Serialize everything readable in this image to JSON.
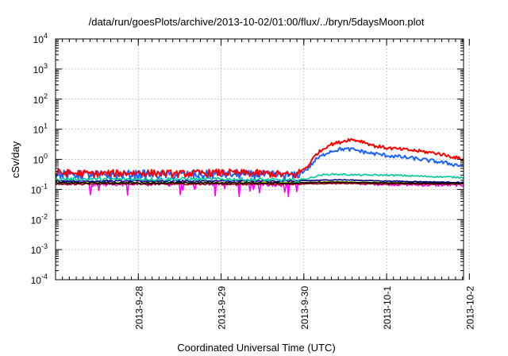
{
  "chart_data": {
    "type": "line",
    "title": "/data/run/goesPlots/archive/2013-10-02/01:00/flux/../bryn/5daysMoon.plot",
    "xlabel": "Coordinated Universal Time (UTC)",
    "ylabel": "cSv/day",
    "yscale": "log",
    "ylim": [
      0.0001,
      10000
    ],
    "xlim_days": [
      0,
      4.93
    ],
    "grid": true,
    "x_ticks": [
      {
        "label": "2013-9-28",
        "day": 1.0
      },
      {
        "label": "2013-9-29",
        "day": 2.0
      },
      {
        "label": "2013-9-30",
        "day": 3.0
      },
      {
        "label": "2013-10-1",
        "day": 4.0
      },
      {
        "label": "2013-10-2",
        "day": 5.0
      }
    ],
    "y_ticks": [
      {
        "base": "10",
        "exp": "-4",
        "value": 0.0001
      },
      {
        "base": "10",
        "exp": "-3",
        "value": 0.001
      },
      {
        "base": "10",
        "exp": "-2",
        "value": 0.01
      },
      {
        "base": "10",
        "exp": "-1",
        "value": 0.1
      },
      {
        "base": "10",
        "exp": "0",
        "value": 1
      },
      {
        "base": "10",
        "exp": "1",
        "value": 10
      },
      {
        "base": "10",
        "exp": "2",
        "value": 100
      },
      {
        "base": "10",
        "exp": "3",
        "value": 1000
      },
      {
        "base": "10",
        "exp": "4",
        "value": 10000
      }
    ],
    "series": [
      {
        "color": "#ff00ff",
        "noise": 0.11,
        "dips": true,
        "points": [
          [
            0,
            0.17
          ],
          [
            0.5,
            0.16
          ],
          [
            1,
            0.17
          ],
          [
            1.5,
            0.16
          ],
          [
            2,
            0.17
          ],
          [
            2.5,
            0.16
          ],
          [
            2.9,
            0.16
          ],
          [
            3.3,
            0.17
          ],
          [
            3.6,
            0.16
          ],
          [
            4.0,
            0.15
          ],
          [
            4.5,
            0.14
          ],
          [
            4.93,
            0.14
          ]
        ]
      },
      {
        "color": "#8b0000",
        "noise": 0.025,
        "dips": false,
        "points": [
          [
            0,
            0.15
          ],
          [
            1,
            0.15
          ],
          [
            2,
            0.15
          ],
          [
            2.9,
            0.15
          ],
          [
            3.4,
            0.16
          ],
          [
            4.0,
            0.15
          ],
          [
            4.93,
            0.15
          ]
        ]
      },
      {
        "color": "#ffff00",
        "noise": 0.02,
        "dips": false,
        "points": [
          [
            0,
            0.17
          ],
          [
            1,
            0.17
          ],
          [
            2,
            0.17
          ],
          [
            2.9,
            0.17
          ],
          [
            3.4,
            0.18
          ],
          [
            4.0,
            0.17
          ],
          [
            4.93,
            0.16
          ]
        ]
      },
      {
        "color": "#00008b",
        "noise": 0.03,
        "dips": false,
        "points": [
          [
            0,
            0.19
          ],
          [
            1,
            0.19
          ],
          [
            2,
            0.19
          ],
          [
            2.9,
            0.19
          ],
          [
            3.4,
            0.21
          ],
          [
            4.0,
            0.19
          ],
          [
            4.93,
            0.17
          ]
        ]
      },
      {
        "color": "#000000",
        "noise": 0.02,
        "dips": false,
        "points": [
          [
            0,
            0.165
          ],
          [
            1,
            0.165
          ],
          [
            2,
            0.165
          ],
          [
            2.9,
            0.165
          ],
          [
            3.4,
            0.175
          ],
          [
            4.0,
            0.165
          ],
          [
            4.93,
            0.16
          ]
        ]
      },
      {
        "color": "#00c896",
        "noise": 0.06,
        "dips": false,
        "points": [
          [
            0,
            0.22
          ],
          [
            1,
            0.22
          ],
          [
            2,
            0.22
          ],
          [
            2.9,
            0.2
          ],
          [
            3.05,
            0.23
          ],
          [
            3.2,
            0.3
          ],
          [
            3.35,
            0.32
          ],
          [
            3.7,
            0.3
          ],
          [
            4.0,
            0.3
          ],
          [
            4.5,
            0.27
          ],
          [
            4.93,
            0.25
          ]
        ]
      },
      {
        "color": "#1e64ff",
        "noise": 0.14,
        "dips": false,
        "points": [
          [
            0,
            0.32
          ],
          [
            0.5,
            0.3
          ],
          [
            1,
            0.32
          ],
          [
            1.5,
            0.3
          ],
          [
            2,
            0.32
          ],
          [
            2.5,
            0.31
          ],
          [
            2.9,
            0.28
          ],
          [
            3.05,
            0.5
          ],
          [
            3.15,
            1.0
          ],
          [
            3.3,
            1.8
          ],
          [
            3.45,
            2.2
          ],
          [
            3.6,
            2.1
          ],
          [
            3.8,
            1.6
          ],
          [
            4.0,
            1.35
          ],
          [
            4.3,
            1.1
          ],
          [
            4.6,
            0.85
          ],
          [
            4.93,
            0.6
          ]
        ]
      },
      {
        "color": "#ff0000",
        "noise": 0.12,
        "dips": false,
        "points": [
          [
            0,
            0.36
          ],
          [
            0.5,
            0.33
          ],
          [
            1,
            0.36
          ],
          [
            1.5,
            0.33
          ],
          [
            2,
            0.36
          ],
          [
            2.5,
            0.34
          ],
          [
            2.9,
            0.3
          ],
          [
            3.05,
            0.6
          ],
          [
            3.15,
            1.5
          ],
          [
            3.3,
            3.0
          ],
          [
            3.45,
            3.8
          ],
          [
            3.55,
            4.6
          ],
          [
            3.7,
            4.0
          ],
          [
            3.85,
            2.8
          ],
          [
            4.0,
            2.4
          ],
          [
            4.3,
            2.0
          ],
          [
            4.6,
            1.6
          ],
          [
            4.93,
            1.0
          ]
        ]
      }
    ]
  }
}
